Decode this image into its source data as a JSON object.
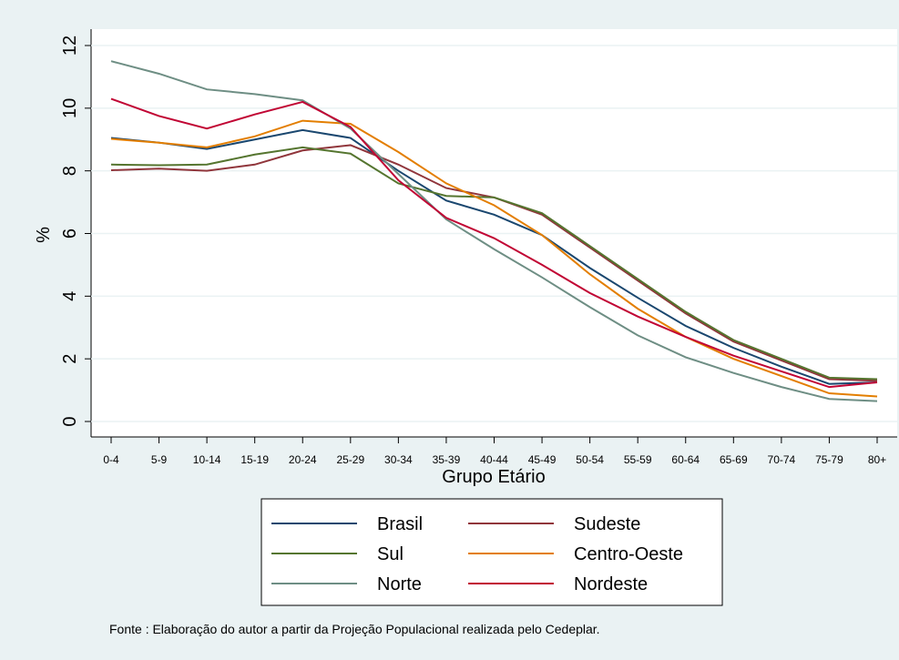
{
  "chart_data": {
    "type": "line",
    "x_label": "Grupo Etário",
    "y_label": "%",
    "note": "Fonte : Elaboração do autor a partir da Projeção Populacional realizada pelo Cedeplar.",
    "categories": [
      "0-4",
      "5-9",
      "10-14",
      "15-19",
      "20-24",
      "25-29",
      "30-34",
      "35-39",
      "40-44",
      "45-49",
      "50-54",
      "55-59",
      "60-64",
      "65-69",
      "70-74",
      "75-79",
      "80+"
    ],
    "series": [
      {
        "name": "Brasil",
        "color": "#1a476f",
        "values": [
          9.05,
          8.9,
          8.7,
          9.0,
          9.3,
          9.05,
          8.0,
          7.05,
          6.6,
          5.95,
          4.9,
          3.95,
          3.05,
          2.35,
          1.75,
          1.2,
          1.25
        ]
      },
      {
        "name": "Sudeste",
        "color": "#90353b",
        "values": [
          8.02,
          8.07,
          8.0,
          8.2,
          8.65,
          8.82,
          8.2,
          7.45,
          7.15,
          6.6,
          5.55,
          4.5,
          3.45,
          2.55,
          1.95,
          1.35,
          1.3
        ]
      },
      {
        "name": "Sul",
        "color": "#55752f",
        "values": [
          8.2,
          8.18,
          8.2,
          8.52,
          8.75,
          8.55,
          7.6,
          7.2,
          7.15,
          6.65,
          5.6,
          4.55,
          3.5,
          2.6,
          2.0,
          1.4,
          1.35
        ]
      },
      {
        "name": "Centro-Oeste",
        "color": "#e37e00",
        "values": [
          9.02,
          8.9,
          8.75,
          9.1,
          9.6,
          9.5,
          8.6,
          7.6,
          6.9,
          5.95,
          4.7,
          3.6,
          2.7,
          2.0,
          1.45,
          0.9,
          0.8
        ]
      },
      {
        "name": "Norte",
        "color": "#6e8e84",
        "values": [
          11.5,
          11.1,
          10.6,
          10.45,
          10.25,
          9.35,
          7.9,
          6.45,
          5.5,
          4.6,
          3.65,
          2.75,
          2.05,
          1.55,
          1.1,
          0.72,
          0.65
        ]
      },
      {
        "name": "Nordeste",
        "color": "#c10534",
        "values": [
          10.3,
          9.75,
          9.35,
          9.8,
          10.2,
          9.4,
          7.7,
          6.5,
          5.85,
          5.0,
          4.1,
          3.35,
          2.7,
          2.1,
          1.6,
          1.1,
          1.25
        ]
      }
    ],
    "ylim": [
      0,
      12
    ],
    "yticks": [
      0,
      2,
      4,
      6,
      8,
      10,
      12
    ],
    "grid": true,
    "legend": "bottom"
  }
}
